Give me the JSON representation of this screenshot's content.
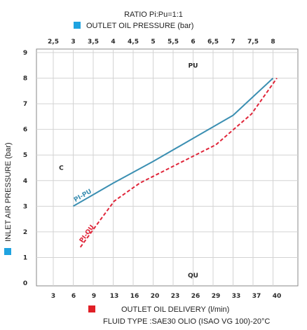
{
  "chart_data": {
    "type": "line",
    "title": "RATIO  Pi:Pu=1:1",
    "top_axis_label": "OUTLET OIL PRESSURE (bar)",
    "top_axis_ticks": [
      "2,5",
      "3",
      "3,5",
      "4",
      "4,5",
      "5",
      "5,5",
      "6",
      "6,5",
      "7",
      "7,5",
      "8"
    ],
    "top_axis_range": [
      2.5,
      8
    ],
    "left_axis_label": "INLET AIR PRESSURE (bar)",
    "left_axis_ticks": [
      "0",
      "1",
      "2",
      "3",
      "4",
      "5",
      "6",
      "7",
      "8",
      "9"
    ],
    "left_axis_range": [
      0,
      9
    ],
    "bottom_axis_label": "OUTLET OIL DELIVERY (l/min)",
    "bottom_axis_ticks": [
      "3",
      "6",
      "9",
      "13",
      "16",
      "20",
      "23",
      "26",
      "29",
      "33",
      "37",
      "40"
    ],
    "bottom_axis_range": [
      3,
      40
    ],
    "footer": "FLUID TYPE :SAE30 OLIO (ISAO VG 100)-20°C",
    "region_labels": [
      {
        "text": "PU",
        "x": 6,
        "y": 8.5
      },
      {
        "text": "QU",
        "x": 6,
        "y": 0.3
      },
      {
        "text": "C",
        "x": 2.7,
        "y": 4.5
      }
    ],
    "series": [
      {
        "name": "PI-PU",
        "color": "#3b8fb2",
        "style": "solid",
        "x_axis": "top",
        "points": [
          [
            3,
            3.0
          ],
          [
            4,
            3.9
          ],
          [
            5,
            4.75
          ],
          [
            6,
            5.65
          ],
          [
            7,
            6.55
          ],
          [
            8,
            8.0
          ]
        ]
      },
      {
        "name": "PI-QU",
        "color": "#e0263a",
        "style": "dashed",
        "x_axis": "bottom",
        "points": [
          [
            7,
            1.4
          ],
          [
            10,
            2.4
          ],
          [
            13,
            3.2
          ],
          [
            17,
            3.9
          ],
          [
            23,
            4.6
          ],
          [
            29,
            5.4
          ],
          [
            36,
            6.6
          ],
          [
            40,
            8.0
          ]
        ]
      }
    ],
    "legend_markers": {
      "top": "#1fa3e0",
      "left": "#1fa3e0",
      "bottom": "#e01f26"
    },
    "grid": true
  }
}
